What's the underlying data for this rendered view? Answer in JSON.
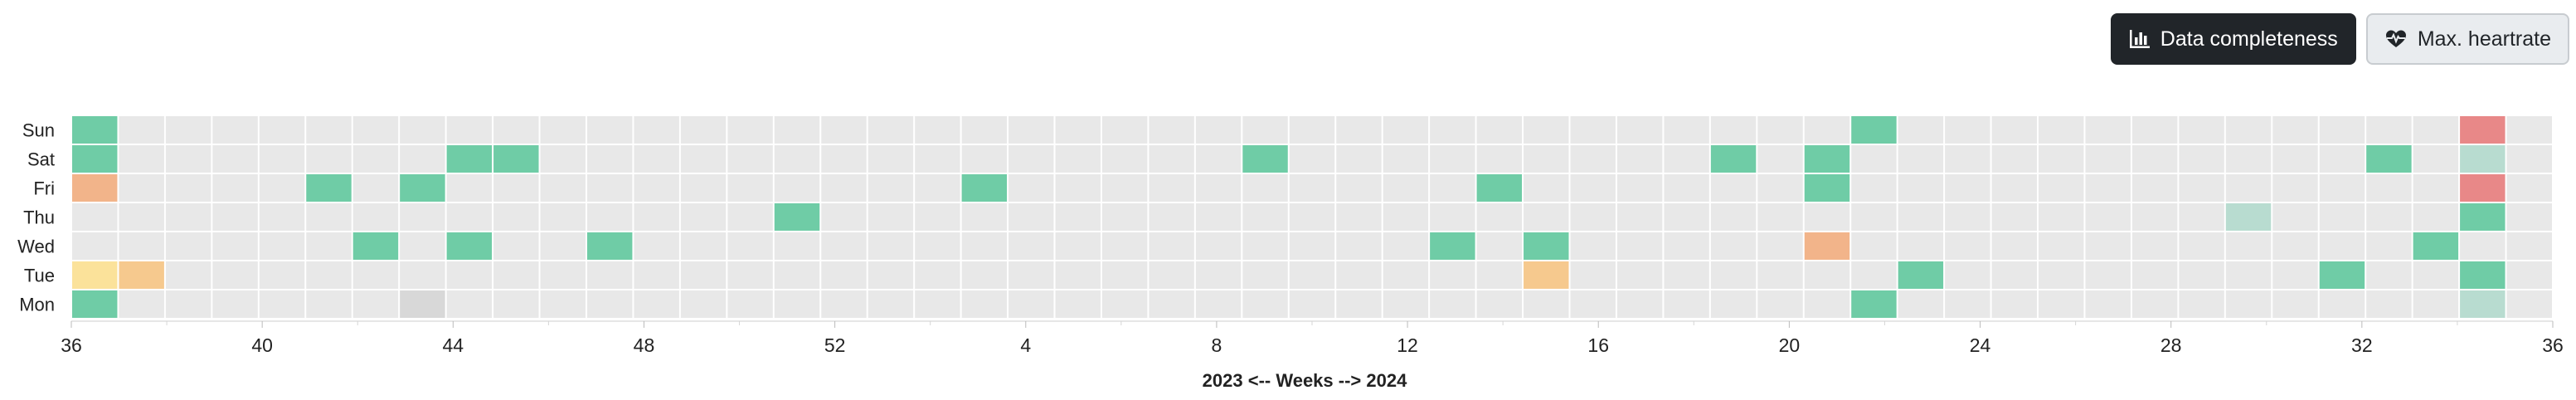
{
  "toolbar": {
    "buttons": [
      {
        "label": "Data completeness",
        "icon": "bar-chart-icon",
        "active": true
      },
      {
        "label": "Max. heartrate",
        "icon": "heart-pulse-icon",
        "active": false
      }
    ]
  },
  "chart_data": {
    "type": "heatmap",
    "xlabel": "2023 <-- Weeks --> 2024",
    "x_ticks": [
      "36",
      "40",
      "44",
      "48",
      "52",
      "4",
      "8",
      "12",
      "16",
      "20",
      "24",
      "28",
      "32",
      "36"
    ],
    "y_categories": [
      "Sun",
      "Sat",
      "Fri",
      "Thu",
      "Wed",
      "Tue",
      "Mon"
    ],
    "columns": 53,
    "colors": {
      "empty": "#e8e8e8",
      "green": "#6fcca6",
      "light_green": "#b8dcd0",
      "orange": "#f2b48a",
      "light_orange": "#f6c98e",
      "yellow": "#fbe29a",
      "red": "#e88888",
      "gray": "#d8d8d8"
    },
    "cells": [
      {
        "col": 0,
        "day": "Sun",
        "value": "green"
      },
      {
        "col": 0,
        "day": "Sat",
        "value": "green"
      },
      {
        "col": 0,
        "day": "Fri",
        "value": "orange"
      },
      {
        "col": 0,
        "day": "Tue",
        "value": "yellow"
      },
      {
        "col": 0,
        "day": "Mon",
        "value": "green"
      },
      {
        "col": 1,
        "day": "Tue",
        "value": "light_orange"
      },
      {
        "col": 5,
        "day": "Fri",
        "value": "green"
      },
      {
        "col": 6,
        "day": "Wed",
        "value": "green"
      },
      {
        "col": 7,
        "day": "Fri",
        "value": "green"
      },
      {
        "col": 7,
        "day": "Mon",
        "value": "gray"
      },
      {
        "col": 8,
        "day": "Sat",
        "value": "green"
      },
      {
        "col": 8,
        "day": "Wed",
        "value": "green"
      },
      {
        "col": 9,
        "day": "Sat",
        "value": "green"
      },
      {
        "col": 11,
        "day": "Wed",
        "value": "green"
      },
      {
        "col": 15,
        "day": "Thu",
        "value": "green"
      },
      {
        "col": 19,
        "day": "Fri",
        "value": "green"
      },
      {
        "col": 25,
        "day": "Sat",
        "value": "green"
      },
      {
        "col": 29,
        "day": "Wed",
        "value": "green"
      },
      {
        "col": 30,
        "day": "Fri",
        "value": "green"
      },
      {
        "col": 31,
        "day": "Wed",
        "value": "green"
      },
      {
        "col": 31,
        "day": "Tue",
        "value": "light_orange"
      },
      {
        "col": 35,
        "day": "Sat",
        "value": "green"
      },
      {
        "col": 37,
        "day": "Sat",
        "value": "green"
      },
      {
        "col": 37,
        "day": "Fri",
        "value": "green"
      },
      {
        "col": 37,
        "day": "Wed",
        "value": "orange"
      },
      {
        "col": 38,
        "day": "Sun",
        "value": "green"
      },
      {
        "col": 38,
        "day": "Mon",
        "value": "green"
      },
      {
        "col": 39,
        "day": "Tue",
        "value": "green"
      },
      {
        "col": 46,
        "day": "Thu",
        "value": "light_green"
      },
      {
        "col": 48,
        "day": "Tue",
        "value": "green"
      },
      {
        "col": 49,
        "day": "Sat",
        "value": "green"
      },
      {
        "col": 50,
        "day": "Wed",
        "value": "green"
      },
      {
        "col": 51,
        "day": "Sun",
        "value": "red"
      },
      {
        "col": 51,
        "day": "Sat",
        "value": "light_green"
      },
      {
        "col": 51,
        "day": "Fri",
        "value": "red"
      },
      {
        "col": 51,
        "day": "Thu",
        "value": "green"
      },
      {
        "col": 51,
        "day": "Tue",
        "value": "green"
      },
      {
        "col": 51,
        "day": "Mon",
        "value": "light_green"
      }
    ]
  }
}
